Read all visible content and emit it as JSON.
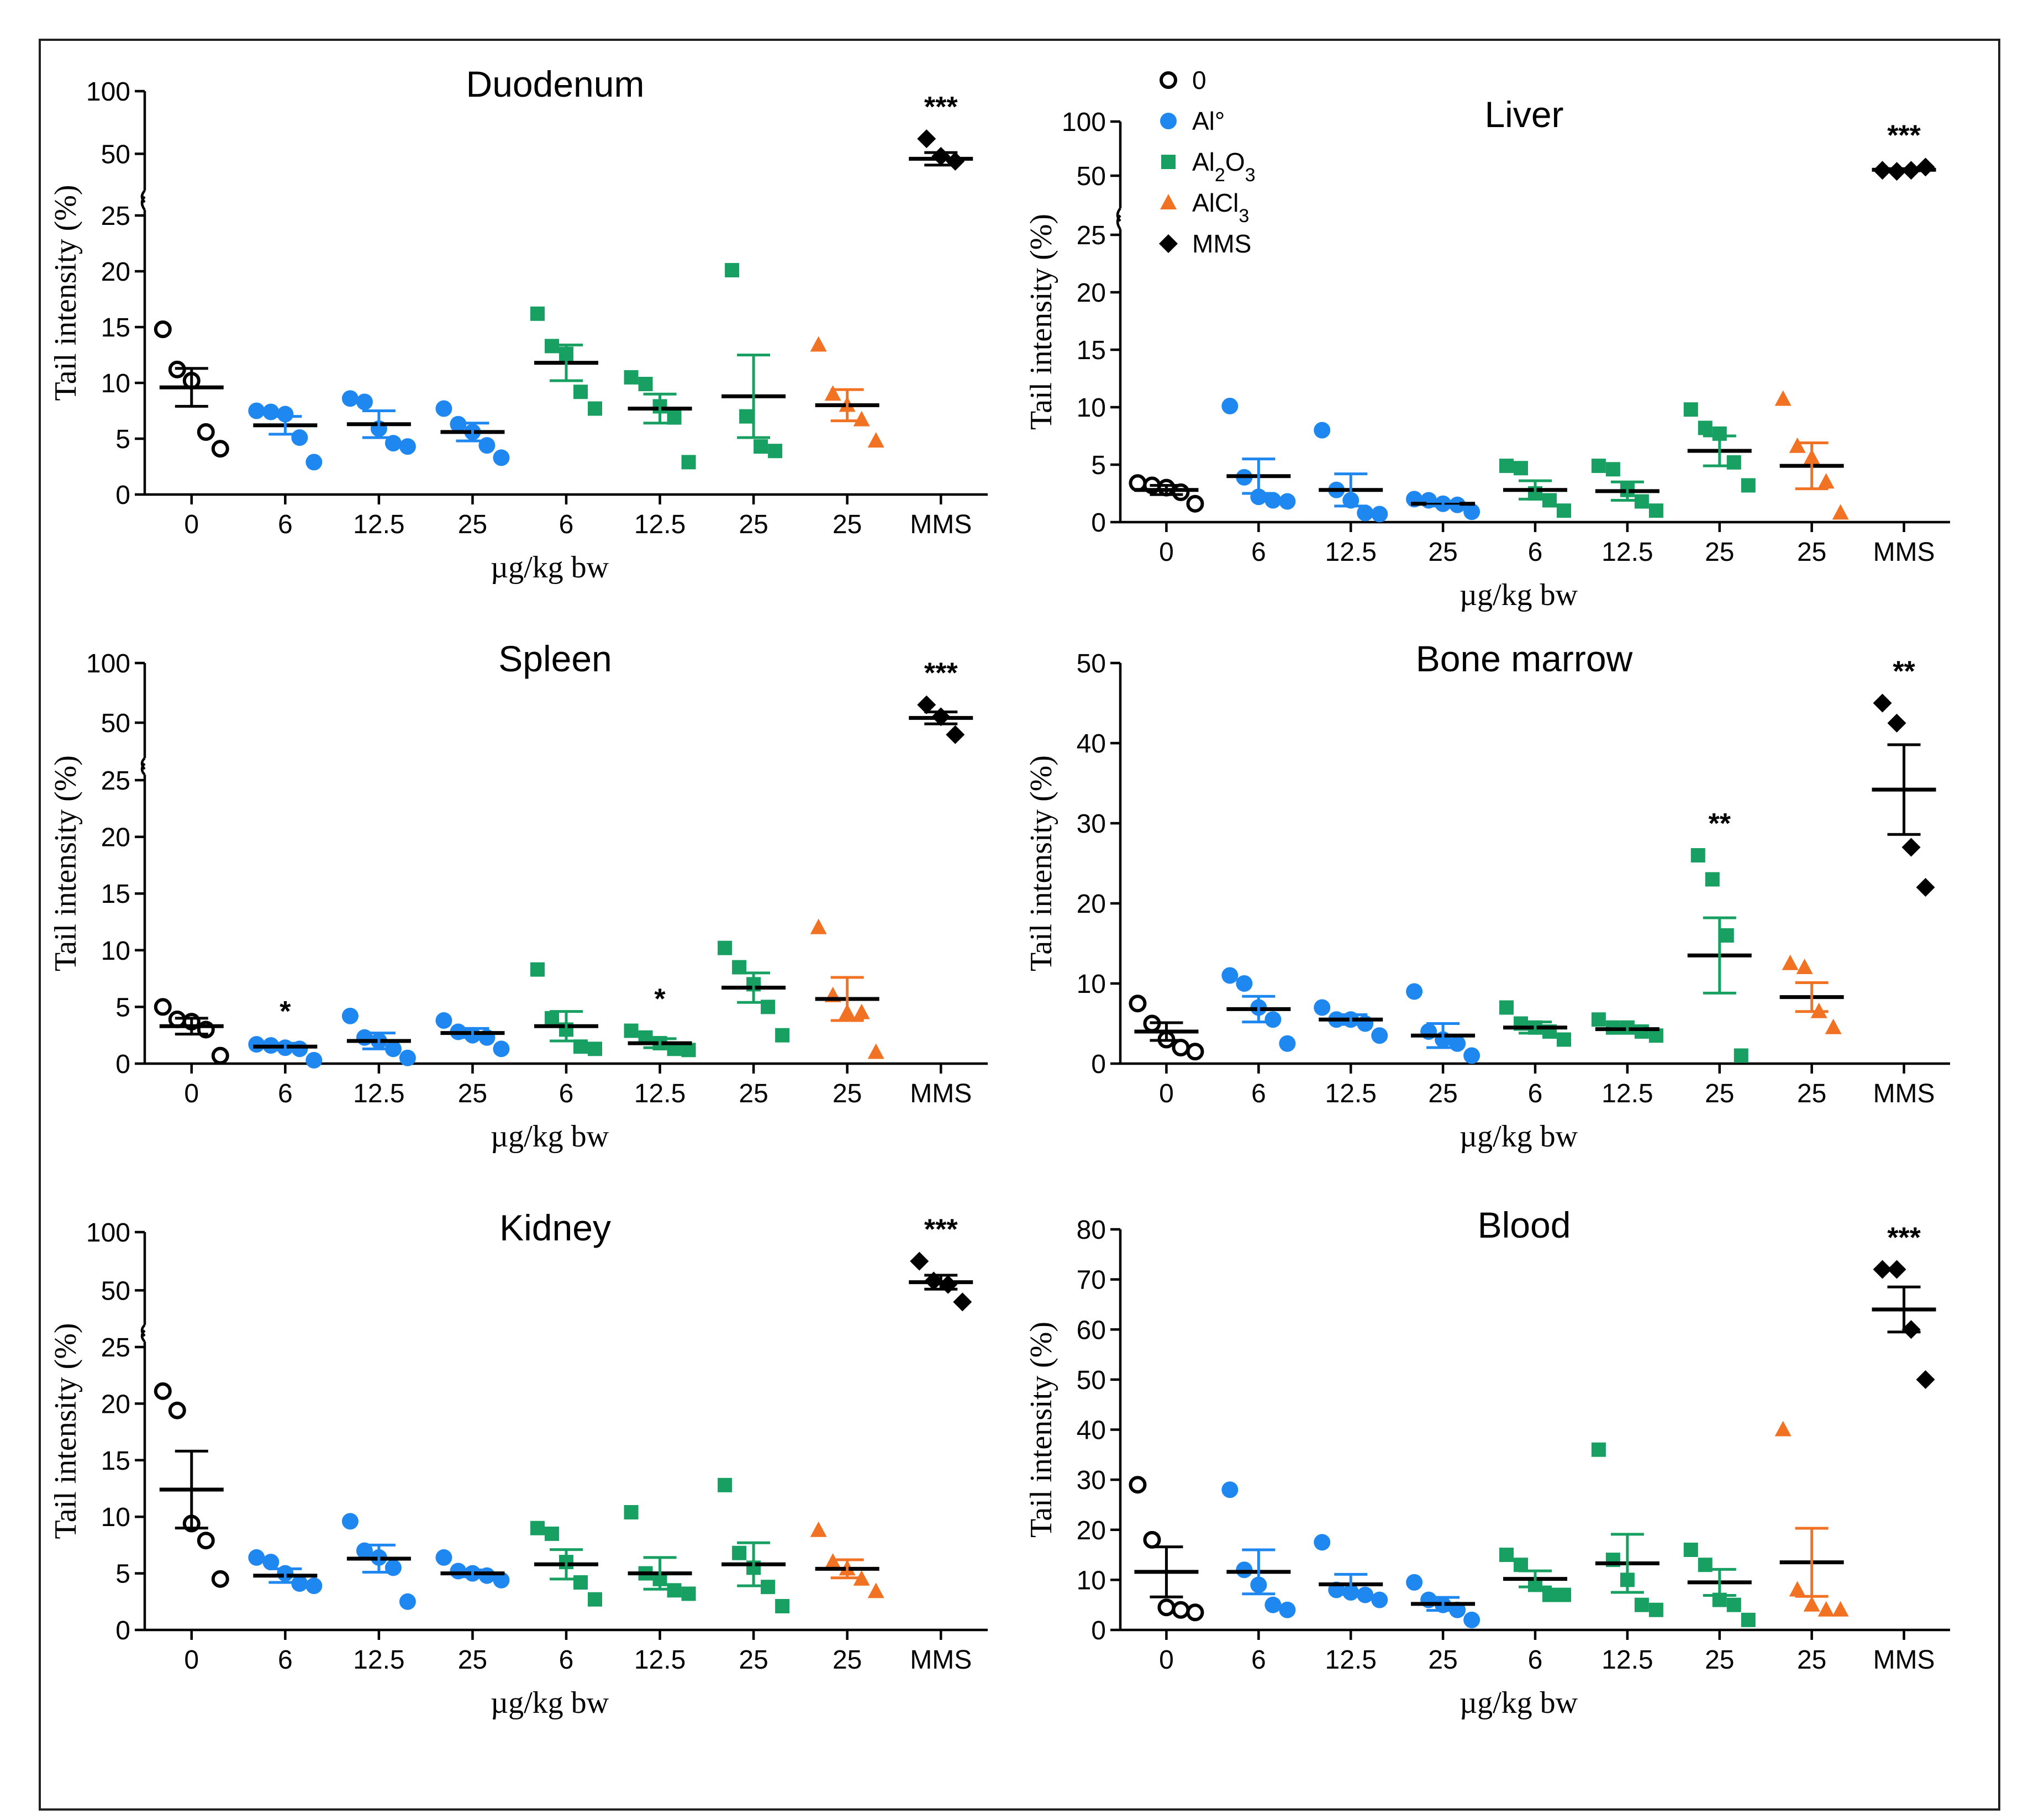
{
  "colors": {
    "0": "#000000",
    "Al": "#1f87f0",
    "Al2O3": "#17a062",
    "AlCl3": "#f27224",
    "MMS": "#000000"
  },
  "legend": [
    {
      "key": "0",
      "label": "0",
      "marker": "circle-open"
    },
    {
      "key": "Al",
      "label": "Al°",
      "marker": "circle"
    },
    {
      "key": "Al2O3",
      "label": "Al2O3",
      "marker": "square"
    },
    {
      "key": "AlCl3",
      "label": "AlCl3",
      "marker": "triangle"
    },
    {
      "key": "MMS",
      "label": "MMS",
      "marker": "diamond"
    }
  ],
  "chart_data": [
    {
      "type": "scatter",
      "title": "Duodenum",
      "xlabel": "µg/kg bw",
      "ylabel": "Tail intensity (%)",
      "broken_axis": true,
      "lower_range": [
        0,
        25
      ],
      "upper_range": [
        25,
        100
      ],
      "lower_ticks": [
        0,
        5,
        10,
        15,
        20,
        25
      ],
      "upper_ticks": [
        50,
        100
      ],
      "categories": [
        "0",
        "6",
        "12.5",
        "25",
        "6",
        "12.5",
        "25",
        "25",
        "MMS"
      ],
      "groups": [
        "0",
        "Al",
        "Al",
        "Al",
        "Al2O3",
        "Al2O3",
        "Al2O3",
        "AlCl3",
        "MMS"
      ],
      "points": [
        [
          14.8,
          11.2,
          10.2,
          5.6,
          4.1
        ],
        [
          7.5,
          7.4,
          7.2,
          5.1,
          2.9
        ],
        [
          8.6,
          8.3,
          5.9,
          4.6,
          4.3
        ],
        [
          7.7,
          6.3,
          5.6,
          4.4,
          3.3
        ],
        [
          16.2,
          13.3,
          12.6,
          9.2,
          7.7
        ],
        [
          10.5,
          9.9,
          7.9,
          6.9,
          2.9
        ],
        [
          20.1,
          7.0,
          4.3,
          3.9
        ],
        [
          13.4,
          9.0,
          8.0,
          6.7,
          4.8
        ],
        [
          62.0,
          48.0,
          44.0
        ]
      ],
      "means": [
        9.6,
        6.2,
        6.3,
        5.6,
        11.8,
        7.7,
        8.8,
        8.0,
        46.0
      ],
      "sem": [
        1.7,
        0.8,
        1.2,
        0.8,
        1.6,
        1.3,
        3.7,
        1.4,
        5.0
      ],
      "significance": {
        "MMS": "***"
      }
    },
    {
      "type": "scatter",
      "title": "Liver",
      "xlabel": "µg/kg bw",
      "ylabel": "Tail intensity (%)",
      "broken_axis": true,
      "lower_range": [
        0,
        25
      ],
      "upper_range": [
        25,
        100
      ],
      "lower_ticks": [
        0,
        5,
        10,
        15,
        20,
        25
      ],
      "upper_ticks": [
        50,
        100
      ],
      "categories": [
        "0",
        "6",
        "12.5",
        "25",
        "6",
        "12.5",
        "25",
        "25",
        "MMS"
      ],
      "groups": [
        "0",
        "Al",
        "Al",
        "Al",
        "Al2O3",
        "Al2O3",
        "Al2O3",
        "AlCl3",
        "MMS"
      ],
      "points": [
        [
          3.4,
          3.2,
          3.0,
          2.6,
          1.6
        ],
        [
          10.1,
          3.9,
          2.2,
          1.9,
          1.8
        ],
        [
          8.0,
          2.8,
          1.9,
          0.8,
          0.7
        ],
        [
          2.0,
          1.9,
          1.6,
          1.5,
          0.9
        ],
        [
          4.9,
          4.7,
          2.5,
          1.9,
          1.0
        ],
        [
          4.9,
          4.6,
          2.8,
          1.8,
          1.0
        ],
        [
          9.8,
          8.2,
          7.7,
          5.2,
          3.2
        ],
        [
          10.7,
          6.6,
          5.6,
          3.5,
          0.8
        ],
        [
          55,
          54,
          55,
          58
        ]
      ],
      "means": [
        2.8,
        4.0,
        2.8,
        1.6,
        2.8,
        2.7,
        6.2,
        4.9,
        55.5
      ],
      "sem": [
        0.4,
        1.5,
        1.4,
        0.2,
        0.8,
        0.8,
        1.3,
        2.0,
        1.0
      ],
      "significance": {
        "MMS": "***"
      }
    },
    {
      "type": "scatter",
      "title": "Spleen",
      "xlabel": "µg/kg bw",
      "ylabel": "Tail intensity (%)",
      "broken_axis": true,
      "lower_range": [
        0,
        25
      ],
      "upper_range": [
        25,
        100
      ],
      "lower_ticks": [
        0,
        5,
        10,
        15,
        20,
        25
      ],
      "upper_ticks": [
        50,
        100
      ],
      "categories": [
        "0",
        "6",
        "12.5",
        "25",
        "6",
        "12.5",
        "25",
        "25",
        "MMS"
      ],
      "groups": [
        "0",
        "Al",
        "Al",
        "Al",
        "Al2O3",
        "Al2O3",
        "Al2O3",
        "AlCl3",
        "MMS"
      ],
      "points": [
        [
          5.0,
          3.9,
          3.7,
          3.0,
          0.7
        ],
        [
          1.7,
          1.6,
          1.4,
          1.3,
          0.3
        ],
        [
          4.2,
          2.3,
          2.0,
          1.3,
          0.5
        ],
        [
          3.8,
          2.8,
          2.5,
          2.3,
          1.3
        ],
        [
          8.3,
          4.0,
          3.0,
          1.5,
          1.3
        ],
        [
          2.9,
          2.3,
          1.8,
          1.3,
          1.2
        ],
        [
          10.2,
          8.5,
          7.0,
          5.0,
          2.5
        ],
        [
          12.0,
          6.0,
          4.5,
          4.5,
          1.0
        ],
        [
          65,
          55,
          40
        ]
      ],
      "means": [
        3.3,
        1.5,
        2.0,
        2.7,
        3.3,
        1.8,
        6.7,
        5.7,
        54.0
      ],
      "sem": [
        0.7,
        0.3,
        0.7,
        0.4,
        1.3,
        0.4,
        1.3,
        1.9,
        5.0
      ],
      "significance": {
        "6": "*",
        "12.5": "*",
        "MMS": "***"
      }
    },
    {
      "type": "scatter",
      "title": "Bone marrow",
      "xlabel": "µg/kg bw",
      "ylabel": "Tail intensity (%)",
      "broken_axis": false,
      "ylim": [
        0,
        50
      ],
      "ticks": [
        0,
        10,
        20,
        30,
        40,
        50
      ],
      "categories": [
        "0",
        "6",
        "12.5",
        "25",
        "6",
        "12.5",
        "25",
        "25",
        "MMS"
      ],
      "groups": [
        "0",
        "Al",
        "Al",
        "Al",
        "Al2O3",
        "Al2O3",
        "Al2O3",
        "AlCl3",
        "MMS"
      ],
      "points": [
        [
          7.5,
          5.0,
          3.0,
          2.0,
          1.5
        ],
        [
          11.0,
          10.0,
          7.0,
          5.5,
          2.5
        ],
        [
          7.0,
          5.5,
          5.5,
          5.0,
          3.5
        ],
        [
          9.0,
          4.0,
          3.0,
          2.5,
          1.0
        ],
        [
          7.0,
          5.0,
          4.5,
          4.0,
          3.0
        ],
        [
          5.5,
          4.5,
          4.5,
          4.0,
          3.5
        ],
        [
          26.0,
          23.0,
          16.0,
          1.0
        ],
        [
          12.5,
          12.0,
          6.5,
          4.5
        ],
        [
          45.0,
          42.5,
          27.0,
          22.0
        ]
      ],
      "means": [
        4.0,
        6.8,
        5.5,
        3.5,
        4.5,
        4.3,
        13.5,
        8.3,
        34.2
      ],
      "sem": [
        1.1,
        1.6,
        0.6,
        1.5,
        0.7,
        0.4,
        4.7,
        1.8,
        5.6
      ],
      "significance": {
        "25": "**",
        "MMS": "**"
      }
    },
    {
      "type": "scatter",
      "title": "Kidney",
      "xlabel": "µg/kg bw",
      "ylabel": "Tail intensity (%)",
      "broken_axis": true,
      "lower_range": [
        0,
        25
      ],
      "upper_range": [
        25,
        100
      ],
      "lower_ticks": [
        0,
        5,
        10,
        15,
        20,
        25
      ],
      "upper_ticks": [
        50,
        100
      ],
      "categories": [
        "0",
        "6",
        "12.5",
        "25",
        "6",
        "12.5",
        "25",
        "25",
        "MMS"
      ],
      "groups": [
        "0",
        "Al",
        "Al",
        "Al",
        "Al2O3",
        "Al2O3",
        "Al2O3",
        "AlCl3",
        "MMS"
      ],
      "points": [
        [
          21.1,
          19.4,
          9.4,
          7.9,
          4.5
        ],
        [
          6.4,
          6.0,
          5.0,
          4.1,
          3.9
        ],
        [
          9.6,
          7.0,
          6.4,
          5.5,
          2.5
        ],
        [
          6.4,
          5.2,
          5.0,
          4.8,
          4.4
        ],
        [
          9.0,
          8.5,
          6.0,
          4.2,
          2.7
        ],
        [
          10.4,
          5.0,
          4.5,
          3.5,
          3.2
        ],
        [
          12.8,
          6.8,
          5.5,
          3.8,
          2.1
        ],
        [
          8.8,
          6.0,
          5.4,
          4.5,
          3.4
        ],
        [
          75,
          58,
          55,
          40
        ]
      ],
      "means": [
        12.4,
        4.8,
        6.3,
        5.0,
        5.8,
        5.0,
        5.8,
        5.4,
        57.0
      ],
      "sem": [
        3.4,
        0.6,
        1.2,
        0.3,
        1.3,
        1.4,
        1.9,
        0.8,
        6.0
      ],
      "significance": {
        "MMS": "***"
      }
    },
    {
      "type": "scatter",
      "title": "Blood",
      "xlabel": "µg/kg bw",
      "ylabel": "Tail intensity (%)",
      "broken_axis": false,
      "ylim": [
        0,
        80
      ],
      "ticks": [
        0,
        10,
        20,
        30,
        40,
        50,
        60,
        70,
        80
      ],
      "categories": [
        "0",
        "6",
        "12.5",
        "25",
        "6",
        "12.5",
        "25",
        "25",
        "MMS"
      ],
      "groups": [
        "0",
        "Al",
        "Al",
        "Al",
        "Al2O3",
        "Al2O3",
        "Al2O3",
        "AlCl3",
        "MMS"
      ],
      "points": [
        [
          29.0,
          18.0,
          4.5,
          4.0,
          3.5
        ],
        [
          28.0,
          12.0,
          9.0,
          5.0,
          4.0
        ],
        [
          17.5,
          8.0,
          7.5,
          7.0,
          6.0
        ],
        [
          9.5,
          6.0,
          5.0,
          4.0,
          2.0
        ],
        [
          15.0,
          13.0,
          9.0,
          7.0,
          7.0
        ],
        [
          36.0,
          14.0,
          10.0,
          5.0,
          4.0
        ],
        [
          16.0,
          13.0,
          6.0,
          5.0,
          2.0
        ],
        [
          40.0,
          8.0,
          5.0,
          4.0,
          4.0
        ],
        [
          72.0,
          72.0,
          60.0,
          50.0
        ]
      ],
      "means": [
        11.6,
        11.6,
        9.1,
        5.2,
        10.2,
        13.3,
        9.5,
        13.5,
        64.0
      ],
      "sem": [
        5.0,
        4.4,
        2.0,
        1.3,
        1.6,
        5.8,
        2.6,
        6.8,
        4.5
      ],
      "significance": {
        "MMS": "***"
      }
    }
  ]
}
